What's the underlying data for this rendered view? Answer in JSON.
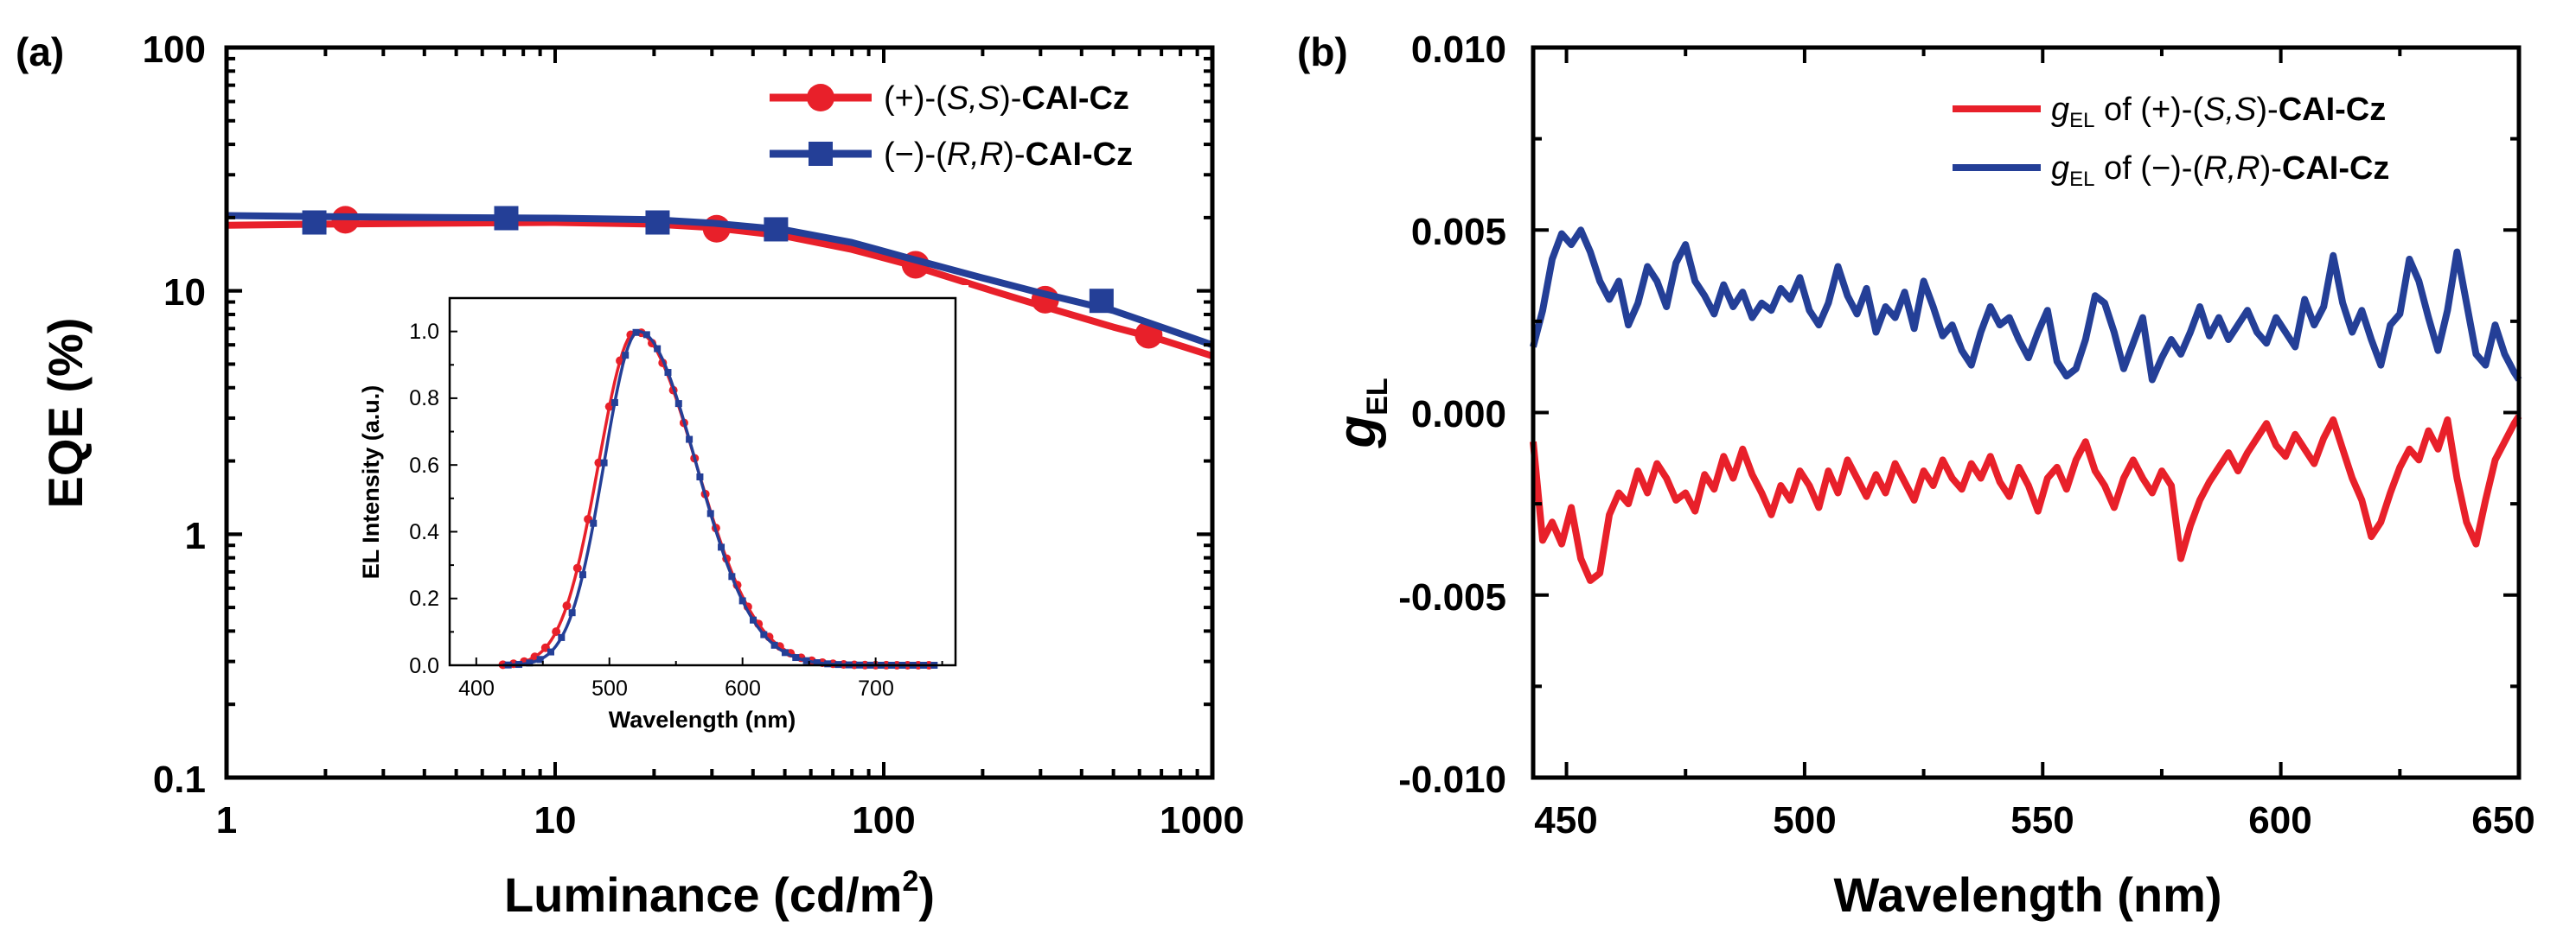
{
  "colors": {
    "red": "#e8202a",
    "blue": "#243f97"
  },
  "chart_data": [
    {
      "panel": "(a)",
      "type": "line",
      "xscale": "log",
      "yscale": "log",
      "xlabel": "Luminance (cd/m",
      "xlabel_sup": "2",
      "xlabel_end": ")",
      "ylabel": "EQE (%)",
      "xlim": [
        1,
        1000
      ],
      "ylim": [
        0.1,
        100
      ],
      "xticks": [
        "1",
        "10",
        "100",
        "1000"
      ],
      "yticks": [
        "0.1",
        "1",
        "10",
        "100"
      ],
      "legend_position": "top-right",
      "series": [
        {
          "name": "(+)-(S,S)-CAI-Cz",
          "prefix": "(+)-(",
          "italic": "S,S",
          "mid": ")-",
          "bold": "CAI-Cz",
          "color": "#e8202a",
          "marker": "circle",
          "line": {
            "x": [
              1,
              2,
              5,
              10,
              20,
              30,
              50,
              80,
              120,
              200,
              300,
              500,
              700,
              1000
            ],
            "y": [
              18.6,
              18.8,
              19.0,
              19.1,
              18.8,
              18.2,
              16.8,
              14.8,
              12.8,
              10.3,
              8.7,
              7.1,
              6.3,
              5.4
            ]
          },
          "markers": {
            "x": [
              2.3,
              31,
              125,
              310,
              640
            ],
            "y": [
              19.6,
              18.0,
              12.8,
              9.2,
              6.6
            ]
          }
        },
        {
          "name": "(−)-(R,R)-CAI-Cz",
          "prefix": "(−)-(",
          "italic": "R,R",
          "mid": ")-",
          "bold": "CAI-Cz",
          "color": "#243f97",
          "marker": "square",
          "line": {
            "x": [
              1,
              2,
              5,
              10,
              20,
              30,
              50,
              80,
              120,
              200,
              300,
              500,
              700,
              1000
            ],
            "y": [
              20.4,
              20.2,
              20.0,
              19.9,
              19.6,
              19.0,
              17.8,
              15.8,
              13.6,
              11.3,
              9.8,
              8.3,
              7.1,
              6.0
            ]
          },
          "markers": {
            "x": [
              1.85,
              7.1,
              20.5,
              47,
              460
            ],
            "y": [
              19.1,
              19.9,
              19.1,
              17.9,
              9.1
            ]
          }
        }
      ],
      "inset": {
        "type": "line",
        "xlabel": "Wavelength (nm)",
        "ylabel": "EL Intensity (a.u.)",
        "xlim": [
          380,
          760
        ],
        "ylim": [
          0,
          1.1
        ],
        "xticks": [
          "400",
          "500",
          "600",
          "700"
        ],
        "yticks": [
          "0.0",
          "0.2",
          "0.4",
          "0.6",
          "0.8",
          "1.0"
        ],
        "series": [
          {
            "name": "(+)-(S,S)-CAI-Cz",
            "color": "#e8202a",
            "marker": "circle",
            "peak": 520,
            "sigma_left": 28,
            "sigma_right": 45,
            "range": [
              420,
              745
            ]
          },
          {
            "name": "(−)-(R,R)-CAI-Cz",
            "color": "#243f97",
            "marker": "square",
            "peak": 522,
            "sigma_left": 26,
            "sigma_right": 43,
            "range": [
              420,
              745
            ]
          }
        ]
      }
    },
    {
      "panel": "(b)",
      "type": "line",
      "xlabel": "Wavelength (nm)",
      "ylabel": "g",
      "ylabel_sub": "EL",
      "xlim": [
        443,
        650
      ],
      "ylim": [
        -0.01,
        0.01
      ],
      "xticks": [
        "450",
        "500",
        "550",
        "600",
        "650"
      ],
      "yticks": [
        "-0.010",
        "-0.005",
        "0.000",
        "0.005",
        "0.010"
      ],
      "legend_position": "top-right",
      "series": [
        {
          "name": "gEL of (+)-(S,S)-CAI-Cz",
          "g": "g",
          "sub": "EL",
          "prefix": " of (+)-(",
          "italic": "S,S",
          "mid": ")-",
          "bold": "CAI-Cz",
          "color": "#e8202a",
          "x": [
            443,
            445,
            447,
            449,
            451,
            453,
            455,
            457,
            459,
            461,
            463,
            465,
            467,
            469,
            471,
            473,
            475,
            477,
            479,
            481,
            483,
            485,
            487,
            489,
            491,
            493,
            495,
            497,
            499,
            501,
            503,
            505,
            507,
            509,
            511,
            513,
            515,
            517,
            519,
            521,
            523,
            525,
            527,
            529,
            531,
            533,
            535,
            537,
            539,
            541,
            543,
            545,
            547,
            549,
            551,
            553,
            555,
            557,
            559,
            561,
            563,
            565,
            567,
            569,
            571,
            573,
            575,
            577,
            579,
            581,
            583,
            585,
            587,
            589,
            591,
            593,
            595,
            597,
            599,
            601,
            603,
            605,
            607,
            609,
            611,
            613,
            615,
            617,
            619,
            621,
            623,
            625,
            627,
            629,
            631,
            633,
            635,
            637,
            639,
            641,
            643,
            645,
            647,
            649,
            650
          ],
          "y": [
            -0.0008,
            -0.0035,
            -0.003,
            -0.0036,
            -0.0026,
            -0.004,
            -0.0046,
            -0.0044,
            -0.0028,
            -0.0022,
            -0.0025,
            -0.0016,
            -0.0022,
            -0.0014,
            -0.0018,
            -0.0024,
            -0.0022,
            -0.0027,
            -0.0017,
            -0.0021,
            -0.0012,
            -0.0018,
            -0.001,
            -0.0017,
            -0.0022,
            -0.0028,
            -0.002,
            -0.0024,
            -0.0016,
            -0.002,
            -0.0026,
            -0.0016,
            -0.0022,
            -0.0013,
            -0.0018,
            -0.0023,
            -0.0017,
            -0.0022,
            -0.0014,
            -0.0019,
            -0.0024,
            -0.0016,
            -0.002,
            -0.0013,
            -0.0018,
            -0.0021,
            -0.0014,
            -0.0018,
            -0.0012,
            -0.0019,
            -0.0023,
            -0.0015,
            -0.002,
            -0.0027,
            -0.0018,
            -0.0015,
            -0.0021,
            -0.0013,
            -0.0008,
            -0.0016,
            -0.002,
            -0.0026,
            -0.0018,
            -0.0013,
            -0.0018,
            -0.0022,
            -0.0016,
            -0.002,
            -0.004,
            -0.0031,
            -0.0024,
            -0.0019,
            -0.0015,
            -0.0011,
            -0.0016,
            -0.0011,
            -0.0007,
            -0.0003,
            -0.0009,
            -0.0012,
            -0.0006,
            -0.001,
            -0.0014,
            -0.0007,
            -0.0002,
            -0.001,
            -0.0018,
            -0.0024,
            -0.0034,
            -0.003,
            -0.0022,
            -0.0015,
            -0.001,
            -0.0013,
            -0.0005,
            -0.001,
            -0.0002,
            -0.0018,
            -0.003,
            -0.0036,
            -0.0024,
            -0.0013,
            -0.0008,
            -0.0003,
            -0.0001
          ]
        },
        {
          "name": "gEL of (−)-(R,R)-CAI-Cz",
          "g": "g",
          "sub": "EL",
          "prefix": " of (−)-(",
          "italic": "R,R",
          "mid": ")-",
          "bold": "CAI-Cz",
          "color": "#243f97",
          "x": [
            443,
            445,
            447,
            449,
            451,
            453,
            455,
            457,
            459,
            461,
            463,
            465,
            467,
            469,
            471,
            473,
            475,
            477,
            479,
            481,
            483,
            485,
            487,
            489,
            491,
            493,
            495,
            497,
            499,
            501,
            503,
            505,
            507,
            509,
            511,
            513,
            515,
            517,
            519,
            521,
            523,
            525,
            527,
            529,
            531,
            533,
            535,
            537,
            539,
            541,
            543,
            545,
            547,
            549,
            551,
            553,
            555,
            557,
            559,
            561,
            563,
            565,
            567,
            569,
            571,
            573,
            575,
            577,
            579,
            581,
            583,
            585,
            587,
            589,
            591,
            593,
            595,
            597,
            599,
            601,
            603,
            605,
            607,
            609,
            611,
            613,
            615,
            617,
            619,
            621,
            623,
            625,
            627,
            629,
            631,
            633,
            635,
            637,
            639,
            641,
            643,
            645,
            647,
            649,
            650
          ],
          "y": [
            0.0018,
            0.0028,
            0.0042,
            0.0049,
            0.0046,
            0.005,
            0.0044,
            0.0036,
            0.0031,
            0.0036,
            0.0024,
            0.003,
            0.004,
            0.0036,
            0.0029,
            0.0041,
            0.0046,
            0.0036,
            0.0032,
            0.0027,
            0.0035,
            0.0029,
            0.0033,
            0.0026,
            0.003,
            0.0028,
            0.0034,
            0.0031,
            0.0037,
            0.0028,
            0.0024,
            0.003,
            0.004,
            0.0032,
            0.0027,
            0.0034,
            0.0022,
            0.0029,
            0.0026,
            0.0033,
            0.0023,
            0.0036,
            0.0029,
            0.0021,
            0.0024,
            0.0017,
            0.0013,
            0.0022,
            0.0029,
            0.0024,
            0.0026,
            0.002,
            0.0015,
            0.0022,
            0.0028,
            0.0014,
            0.001,
            0.0012,
            0.002,
            0.0032,
            0.003,
            0.0022,
            0.0012,
            0.0019,
            0.0026,
            0.0009,
            0.0015,
            0.002,
            0.0016,
            0.0022,
            0.0029,
            0.0021,
            0.0026,
            0.002,
            0.0024,
            0.0028,
            0.0022,
            0.0019,
            0.0026,
            0.0022,
            0.0018,
            0.0031,
            0.0024,
            0.0029,
            0.0043,
            0.003,
            0.0022,
            0.0028,
            0.002,
            0.0013,
            0.0024,
            0.0027,
            0.0042,
            0.0036,
            0.0026,
            0.0017,
            0.0028,
            0.0044,
            0.003,
            0.0016,
            0.0013,
            0.0024,
            0.0016,
            0.0011,
            0.0009
          ]
        }
      ]
    }
  ]
}
